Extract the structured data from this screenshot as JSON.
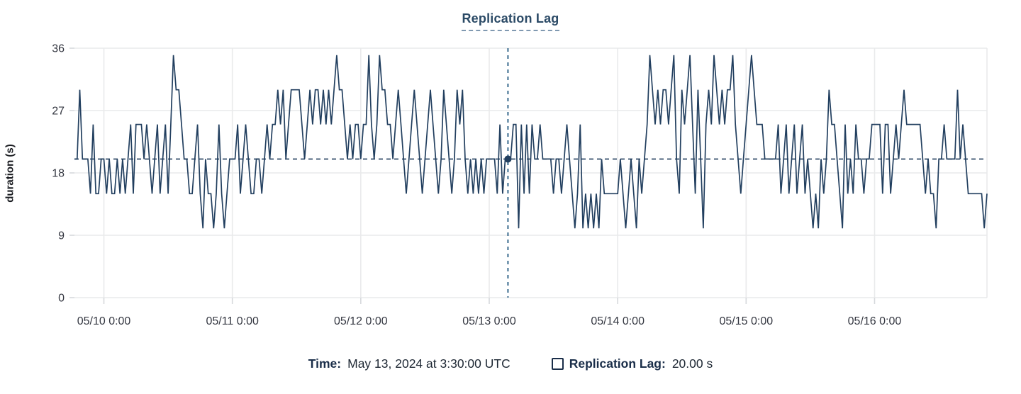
{
  "title": "Replication Lag",
  "tooltip": {
    "time_label": "Time:",
    "time_value": "May 13, 2024 at 3:30:00 UTC",
    "series_label": "Replication Lag:",
    "series_value": "20.00 s"
  },
  "colors": {
    "line": "#223f5f",
    "reference_dash": "#223f5f",
    "crosshair_dash": "#3a6b8e",
    "marker": "#223f5f",
    "grid": "#e9eaeb",
    "tick_mark": "#d6d9dc",
    "tick_text": "#343741",
    "title_text": "#2b4a66"
  },
  "chart_data": {
    "type": "line",
    "title": "Replication Lag",
    "xlabel": "",
    "ylabel": "duration (s)",
    "ylim": [
      0,
      36
    ],
    "y_ticks": [
      0,
      9,
      18,
      27,
      36
    ],
    "x_tick_labels": [
      "05/10 0:00",
      "05/11 0:00",
      "05/12 0:00",
      "05/13 0:00",
      "05/14 0:00",
      "05/15 0:00",
      "05/16 0:00"
    ],
    "x_tick_indices": [
      11,
      59,
      107,
      155,
      203,
      251,
      299
    ],
    "interval_minutes": 30,
    "grid": true,
    "legend_position": "bottom",
    "reference_line_y": 20,
    "crosshair": {
      "index": 162,
      "value": 20,
      "time": "May 13, 2024 at 3:30:00 UTC",
      "display_value": "20.00 s"
    },
    "values": [
      20,
      20,
      30,
      20,
      20,
      20,
      15,
      25,
      15,
      15,
      20,
      20,
      15,
      20,
      15,
      15,
      20,
      15,
      20,
      15,
      20,
      25,
      15,
      25,
      25,
      25,
      20,
      25,
      20,
      15,
      20,
      25,
      15,
      20,
      25,
      15,
      25,
      35,
      30,
      30,
      25,
      20,
      20,
      15,
      15,
      20,
      25,
      15,
      10,
      20,
      15,
      15,
      10,
      15,
      25,
      15,
      10,
      15,
      20,
      20,
      20,
      25,
      15,
      20,
      25,
      20,
      15,
      15,
      20,
      20,
      15,
      20,
      25,
      20,
      25,
      25,
      30,
      25,
      30,
      20,
      25,
      30,
      30,
      30,
      30,
      25,
      20,
      25,
      30,
      25,
      30,
      30,
      25,
      30,
      25,
      30,
      25,
      30,
      35,
      30,
      30,
      25,
      20,
      25,
      20,
      25,
      25,
      20,
      25,
      25,
      35,
      25,
      20,
      25,
      35,
      30,
      30,
      25,
      25,
      20,
      25,
      30,
      25,
      20,
      15,
      20,
      25,
      30,
      25,
      20,
      15,
      20,
      25,
      30,
      25,
      20,
      15,
      20,
      30,
      25,
      20,
      15,
      20,
      30,
      25,
      30,
      20,
      15,
      20,
      15,
      20,
      15,
      20,
      15,
      20,
      20,
      20,
      20,
      15,
      25,
      15,
      20,
      20,
      20,
      25,
      25,
      10,
      25,
      15,
      25,
      15,
      25,
      20,
      20,
      25,
      20,
      20,
      20,
      20,
      15,
      20,
      20,
      15,
      20,
      25,
      20,
      15,
      10,
      15,
      25,
      10,
      15,
      10,
      15,
      10,
      15,
      10,
      20,
      15,
      15,
      15,
      15,
      15,
      15,
      20,
      15,
      10,
      15,
      20,
      15,
      10,
      20,
      15,
      20,
      25,
      35,
      30,
      25,
      30,
      25,
      30,
      30,
      25,
      30,
      35,
      20,
      15,
      30,
      25,
      30,
      35,
      25,
      15,
      30,
      20,
      10,
      25,
      30,
      25,
      35,
      30,
      25,
      30,
      25,
      30,
      30,
      35,
      25,
      20,
      15,
      20,
      25,
      30,
      35,
      30,
      25,
      25,
      25,
      20,
      20,
      20,
      20,
      20,
      25,
      15,
      20,
      25,
      15,
      20,
      25,
      15,
      20,
      25,
      15,
      20,
      15,
      10,
      15,
      10,
      20,
      15,
      20,
      30,
      25,
      25,
      20,
      15,
      10,
      25,
      15,
      20,
      15,
      25,
      20,
      20,
      15,
      20,
      20,
      25,
      25,
      25,
      25,
      15,
      25,
      25,
      15,
      20,
      25,
      20,
      25,
      30,
      25,
      25,
      25,
      25,
      25,
      25,
      20,
      15,
      20,
      15,
      15,
      10,
      20,
      20,
      25,
      20,
      20,
      20,
      20,
      30,
      20,
      25,
      20,
      15,
      15,
      15,
      15,
      15,
      15,
      10,
      15
    ]
  }
}
